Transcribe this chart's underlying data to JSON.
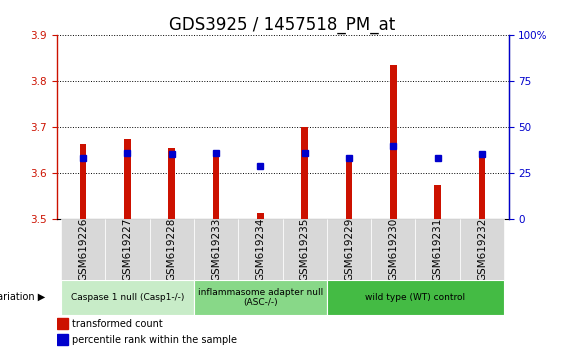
{
  "title": "GDS3925 / 1457518_PM_at",
  "samples": [
    "GSM619226",
    "GSM619227",
    "GSM619228",
    "GSM619233",
    "GSM619234",
    "GSM619235",
    "GSM619229",
    "GSM619230",
    "GSM619231",
    "GSM619232"
  ],
  "red_values": [
    3.665,
    3.675,
    3.655,
    3.645,
    3.515,
    3.7,
    3.625,
    3.835,
    3.575,
    3.645
  ],
  "blue_values": [
    3.633,
    3.645,
    3.643,
    3.645,
    3.617,
    3.645,
    3.633,
    3.66,
    3.633,
    3.643
  ],
  "ylim_left": [
    3.5,
    3.9
  ],
  "ylim_right": [
    0,
    100
  ],
  "yticks_left": [
    3.5,
    3.6,
    3.7,
    3.8,
    3.9
  ],
  "yticks_right": [
    0,
    25,
    50,
    75,
    100
  ],
  "groups": [
    {
      "label": "Caspase 1 null (Casp1-/-)",
      "start": 0,
      "end": 2,
      "color": "#c8ecc8"
    },
    {
      "label": "inflammasome adapter null\n(ASC-/-)",
      "start": 3,
      "end": 5,
      "color": "#88d888"
    },
    {
      "label": "wild type (WT) control",
      "start": 6,
      "end": 9,
      "color": "#44bb44"
    }
  ],
  "legend_red": "transformed count",
  "legend_blue": "percentile rank within the sample",
  "bar_color": "#cc1100",
  "blue_color": "#0000cc",
  "bar_bottom": 3.5,
  "bar_width": 0.15,
  "title_fontsize": 12,
  "tick_fontsize": 7.5,
  "grid_color": "black",
  "bg_tick_color": "#d8d8d8"
}
